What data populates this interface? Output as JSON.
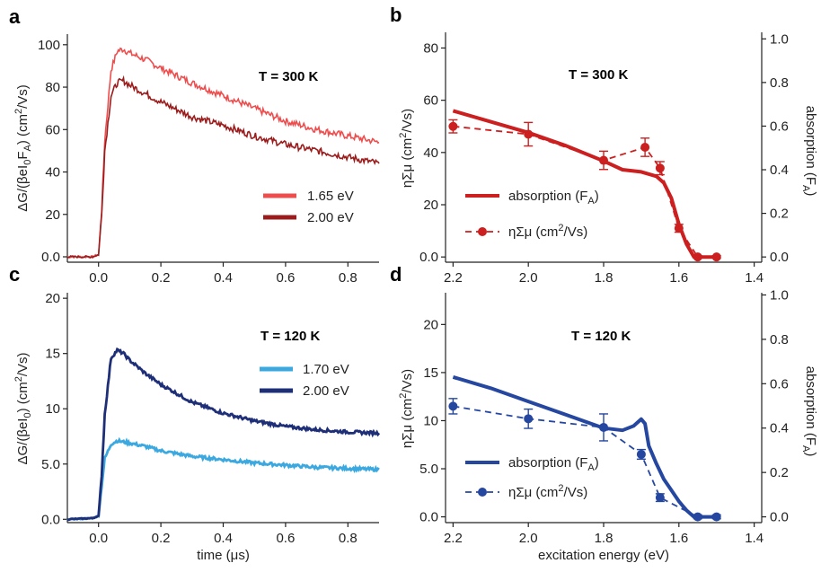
{
  "panels": [
    {
      "label": "a",
      "temperature": "T = 300 K",
      "xlabel": "",
      "ylabel_html": "ΔG/(βeI<tspan font-size='11' dy='4'>0</tspan><tspan dy='-4'>F</tspan><tspan font-size='11' dy='4'>A</tspan><tspan dy='-4'>) (cm</tspan><tspan font-size='11' dy='-6'>2</tspan><tspan dy='6'>/Vs)</tspan>",
      "xticks": [
        "0.0",
        "0.2",
        "0.4",
        "0.6",
        "0.8"
      ],
      "yticks": [
        "0.0",
        "20",
        "40",
        "60",
        "80",
        "100"
      ],
      "legend": [
        "1.65 eV",
        "2.00 eV"
      ]
    },
    {
      "label": "b",
      "temperature": "T = 300 K",
      "ylabel": "ηΣμ (cm²/Vs)",
      "y2label": "absorption (F",
      "y2label_sub": "A",
      "y2label_end": ")",
      "xticks": [
        "2.2",
        "2.0",
        "1.8",
        "1.6",
        "1.4"
      ],
      "yticks": [
        "0.0",
        "20",
        "40",
        "60",
        "80"
      ],
      "y2ticks": [
        "0.0",
        "0.2",
        "0.4",
        "0.6",
        "0.8",
        "1.0"
      ],
      "legend": [
        "absorption (F",
        "ηΣμ (cm"
      ]
    },
    {
      "label": "c",
      "temperature": "T = 120 K",
      "xlabel": "time (μs)",
      "xticks": [
        "0.0",
        "0.2",
        "0.4",
        "0.6",
        "0.8"
      ],
      "yticks": [
        "0.0",
        "5.0",
        "10",
        "15",
        "20"
      ],
      "legend": [
        "1.70 eV",
        "2.00 eV"
      ]
    },
    {
      "label": "d",
      "temperature": "T = 120 K",
      "xlabel": "excitation energy (eV)",
      "xticks": [
        "2.2",
        "2.0",
        "1.8",
        "1.6",
        "1.4"
      ],
      "yticks": [
        "0.0",
        "5.0",
        "10",
        "15",
        "20"
      ],
      "y2ticks": [
        "0.0",
        "0.2",
        "0.4",
        "0.6",
        "0.8",
        "1.0"
      ],
      "legend": [
        "absorption (F",
        "ηΣμ (cm"
      ]
    }
  ],
  "colors": {
    "a_165": "#EE4D4D",
    "a_200": "#9B1C1C",
    "b_red": "#CC1F1F",
    "c_170": "#3BA8E0",
    "c_200": "#1E2F78",
    "d_blue": "#2547A0"
  },
  "chart_data": [
    {
      "type": "line",
      "panel": "a",
      "xlabel": "",
      "ylabel": "ΔG/(βeI0FA) (cm2/Vs)",
      "xlim": [
        -0.1,
        0.9
      ],
      "ylim": [
        0,
        105
      ],
      "series": [
        {
          "name": "1.65 eV",
          "x": [
            -0.1,
            -0.02,
            0.0,
            0.01,
            0.02,
            0.04,
            0.06,
            0.08,
            0.1,
            0.15,
            0.2,
            0.3,
            0.4,
            0.5,
            0.6,
            0.7,
            0.8,
            0.9
          ],
          "y": [
            0,
            0,
            1,
            22,
            55,
            88,
            97,
            98,
            96,
            93,
            89,
            82,
            76,
            70,
            64,
            60,
            57,
            54
          ]
        },
        {
          "name": "2.00 eV",
          "x": [
            -0.1,
            -0.02,
            0.0,
            0.01,
            0.02,
            0.04,
            0.06,
            0.08,
            0.1,
            0.15,
            0.2,
            0.3,
            0.4,
            0.5,
            0.6,
            0.7,
            0.8,
            0.9
          ],
          "y": [
            0,
            0,
            1,
            20,
            50,
            76,
            82,
            83,
            81,
            77,
            73,
            66,
            62,
            57,
            53,
            50,
            47,
            44
          ]
        }
      ]
    },
    {
      "type": "line",
      "panel": "b",
      "ylabel": "ηΣμ (cm2/Vs)",
      "y2label": "absorption (FA)",
      "xlim": [
        2.22,
        1.38
      ],
      "ylim": [
        -2,
        86
      ],
      "y2lim": [
        -0.024,
        1.03
      ],
      "series": [
        {
          "name": "absorption (FA)",
          "axis": "right",
          "x": [
            2.2,
            2.1,
            2.0,
            1.9,
            1.8,
            1.75,
            1.7,
            1.66,
            1.64,
            1.62,
            1.6,
            1.58,
            1.56,
            1.55,
            1.5
          ],
          "y": [
            0.67,
            0.62,
            0.57,
            0.51,
            0.44,
            0.4,
            0.39,
            0.37,
            0.34,
            0.27,
            0.15,
            0.06,
            0.0,
            0.0,
            0.0
          ]
        },
        {
          "name": "ηΣμ (cm2/Vs)",
          "axis": "left",
          "x": [
            2.2,
            2.0,
            1.8,
            1.69,
            1.65,
            1.6,
            1.55,
            1.5
          ],
          "y": [
            50,
            47,
            37,
            42,
            34,
            11,
            0,
            0
          ],
          "err": [
            2.5,
            4.5,
            3.5,
            3.5,
            2.5,
            1.5,
            0.5,
            0.5
          ]
        }
      ]
    },
    {
      "type": "line",
      "panel": "c",
      "xlabel": "time (μs)",
      "ylabel": "ΔG/(βeI0) (cm2/Vs)",
      "xlim": [
        -0.1,
        0.9
      ],
      "ylim": [
        -0.3,
        20.5
      ],
      "series": [
        {
          "name": "1.70 eV",
          "x": [
            -0.1,
            -0.02,
            0.0,
            0.01,
            0.02,
            0.04,
            0.06,
            0.08,
            0.1,
            0.15,
            0.2,
            0.3,
            0.4,
            0.5,
            0.6,
            0.7,
            0.8,
            0.9
          ],
          "y": [
            0,
            0.1,
            0.3,
            3.0,
            5.5,
            6.8,
            7.1,
            7.0,
            6.9,
            6.6,
            6.2,
            5.7,
            5.4,
            5.1,
            4.9,
            4.7,
            4.6,
            4.5
          ]
        },
        {
          "name": "2.00 eV",
          "x": [
            -0.1,
            -0.02,
            0.0,
            0.01,
            0.02,
            0.04,
            0.06,
            0.08,
            0.1,
            0.15,
            0.2,
            0.3,
            0.4,
            0.5,
            0.6,
            0.7,
            0.8,
            0.9
          ],
          "y": [
            0,
            0.1,
            0.3,
            4.0,
            9.5,
            14.6,
            15.3,
            15.0,
            14.4,
            13.2,
            12.2,
            10.6,
            9.6,
            8.9,
            8.4,
            8.1,
            7.9,
            7.8
          ]
        }
      ]
    },
    {
      "type": "line",
      "panel": "d",
      "xlabel": "excitation energy (eV)",
      "ylabel": "ηΣμ (cm2/Vs)",
      "y2label": "absorption (FA)",
      "xlim": [
        2.22,
        1.38
      ],
      "ylim": [
        -0.6,
        23.3
      ],
      "y2lim": [
        -0.026,
        1.01
      ],
      "series": [
        {
          "name": "absorption (FA)",
          "axis": "right",
          "x": [
            2.2,
            2.1,
            2.0,
            1.9,
            1.8,
            1.75,
            1.72,
            1.7,
            1.69,
            1.68,
            1.66,
            1.64,
            1.62,
            1.6,
            1.58,
            1.56,
            1.55,
            1.5
          ],
          "y": [
            0.63,
            0.58,
            0.52,
            0.46,
            0.4,
            0.39,
            0.41,
            0.44,
            0.42,
            0.32,
            0.24,
            0.17,
            0.12,
            0.07,
            0.03,
            0.0,
            0.0,
            0.0
          ]
        },
        {
          "name": "ηΣμ (cm2/Vs)",
          "axis": "left",
          "x": [
            2.2,
            2.0,
            1.8,
            1.7,
            1.65,
            1.55,
            1.5
          ],
          "y": [
            11.5,
            10.2,
            9.3,
            6.5,
            2.0,
            0.0,
            0.0
          ],
          "err": [
            0.8,
            1.0,
            1.4,
            0.5,
            0.4,
            0.2,
            0.2
          ]
        }
      ]
    }
  ]
}
